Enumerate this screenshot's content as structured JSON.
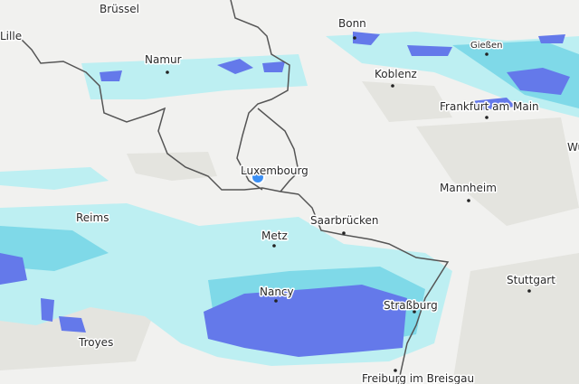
{
  "cities": [
    {
      "label": "Brüssel"
    },
    {
      "label": "Lille"
    },
    {
      "label": "Namur"
    },
    {
      "label": "Bonn"
    },
    {
      "label": "Gießen"
    },
    {
      "label": "Koblenz"
    },
    {
      "label": "Frankfurt am Main"
    },
    {
      "label": "Wü"
    },
    {
      "label": "Luxembourg"
    },
    {
      "label": "Reims"
    },
    {
      "label": "Mannheim"
    },
    {
      "label": "Saarbrücken"
    },
    {
      "label": "Metz"
    },
    {
      "label": "Stuttgart"
    },
    {
      "label": "Nancy"
    },
    {
      "label": "Straßburg"
    },
    {
      "label": "Troyes"
    },
    {
      "label": "Freiburg im Breisgau"
    }
  ]
}
